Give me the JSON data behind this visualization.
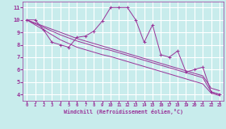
{
  "xlabel": "Windchill (Refroidissement éolien,°C)",
  "bg_color": "#c8ecec",
  "grid_color": "#ffffff",
  "line_color": "#993399",
  "xlim": [
    -0.5,
    23.5
  ],
  "ylim": [
    3.5,
    11.5
  ],
  "xticks": [
    0,
    1,
    2,
    3,
    4,
    5,
    6,
    7,
    8,
    9,
    10,
    11,
    12,
    13,
    14,
    15,
    16,
    17,
    18,
    19,
    20,
    21,
    22,
    23
  ],
  "yticks": [
    4,
    5,
    6,
    7,
    8,
    9,
    10,
    11
  ],
  "series": [
    {
      "x": [
        0,
        1,
        2,
        3,
        4,
        5,
        6,
        7,
        8,
        9,
        10,
        11,
        12,
        13,
        14,
        15,
        16,
        17,
        18,
        19,
        20,
        21,
        22,
        23
      ],
      "y": [
        10,
        10,
        9.2,
        8.2,
        8.0,
        7.8,
        8.6,
        8.7,
        9.1,
        9.9,
        11.0,
        11.0,
        11.0,
        10.0,
        8.2,
        9.6,
        7.2,
        7.0,
        7.5,
        5.8,
        6.0,
        6.2,
        4.2,
        4.0
      ],
      "marker": true
    },
    {
      "x": [
        0,
        1,
        2,
        3,
        4,
        5,
        6,
        7,
        8,
        9,
        10,
        11,
        12,
        13,
        14,
        15,
        16,
        17,
        18,
        19,
        20,
        21,
        22,
        23
      ],
      "y": [
        10.0,
        9.75,
        9.5,
        9.25,
        9.0,
        8.75,
        8.5,
        8.3,
        8.1,
        7.9,
        7.7,
        7.5,
        7.3,
        7.1,
        6.9,
        6.7,
        6.5,
        6.3,
        6.1,
        5.9,
        5.7,
        5.5,
        4.5,
        4.3
      ],
      "marker": false
    },
    {
      "x": [
        0,
        1,
        2,
        3,
        4,
        5,
        6,
        7,
        8,
        9,
        10,
        11,
        12,
        13,
        14,
        15,
        16,
        17,
        18,
        19,
        20,
        21,
        22,
        23
      ],
      "y": [
        10.0,
        9.7,
        9.4,
        9.1,
        8.8,
        8.55,
        8.3,
        8.1,
        7.9,
        7.7,
        7.55,
        7.35,
        7.15,
        6.95,
        6.75,
        6.55,
        6.35,
        6.15,
        5.95,
        5.75,
        5.55,
        5.35,
        4.2,
        4.0
      ],
      "marker": false
    },
    {
      "x": [
        0,
        1,
        2,
        3,
        4,
        5,
        6,
        7,
        8,
        9,
        10,
        11,
        12,
        13,
        14,
        15,
        16,
        17,
        18,
        19,
        20,
        21,
        22,
        23
      ],
      "y": [
        10.0,
        9.6,
        9.2,
        8.8,
        8.4,
        8.1,
        7.8,
        7.6,
        7.4,
        7.2,
        7.05,
        6.85,
        6.65,
        6.45,
        6.25,
        6.05,
        5.85,
        5.65,
        5.45,
        5.25,
        5.05,
        4.85,
        4.1,
        3.9
      ],
      "marker": false
    }
  ]
}
